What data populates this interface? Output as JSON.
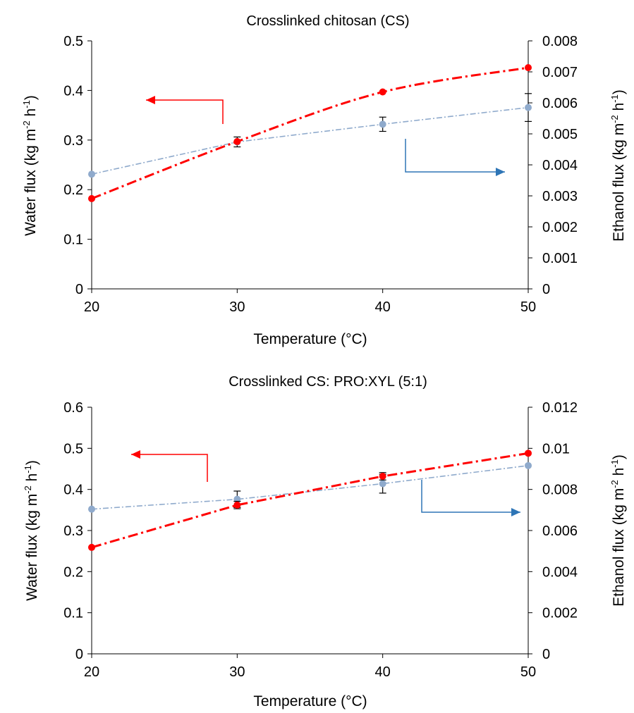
{
  "chart_data": [
    {
      "type": "line",
      "title": "Crosslinked chitosan (CS)",
      "xlabel": "Temperature (°C)",
      "ylabel": {
        "pre": "Water  flux (kg m",
        "sup1": "-2",
        "mid": " h",
        "sup2": "-1",
        "post": ")"
      },
      "y2label": {
        "pre": "Ethanol flux (kg m",
        "sup1": "-2",
        "mid": " h",
        "sup2": "-1",
        "post": ")"
      },
      "xlim": [
        20,
        50
      ],
      "ylim": [
        0,
        0.5
      ],
      "y2lim": [
        0,
        0.008
      ],
      "x_ticks": [
        "20",
        "30",
        "40",
        "50"
      ],
      "y_ticks": [
        "0",
        "0.1",
        "0.2",
        "0.3",
        "0.4",
        "0.5"
      ],
      "y2_ticks": [
        "0",
        "0.001",
        "0.002",
        "0.003",
        "0.004",
        "0.005",
        "0.006",
        "0.007",
        "0.008"
      ],
      "series": [
        {
          "axis": "y",
          "color": "#ff0000",
          "style": "dash-dot",
          "smooth": true,
          "x": [
            20,
            30,
            40,
            50
          ],
          "y": [
            0.182,
            0.297,
            0.397,
            0.446
          ],
          "err": [
            0,
            0,
            0,
            0
          ]
        },
        {
          "axis": "y2",
          "color": "#8faacc",
          "style": "dash-dot",
          "smooth": false,
          "x": [
            20,
            30,
            40,
            50
          ],
          "y": [
            0.0037,
            0.00474,
            0.00531,
            0.00585
          ],
          "err": [
            0,
            0.00016,
            0.00023,
            0.00045
          ]
        }
      ],
      "annotations": [
        {
          "type": "arrow-left",
          "color": "#ff0000",
          "target": "Water flux axis"
        },
        {
          "type": "arrow-right",
          "color": "#2e75b6",
          "target": "Ethanol flux axis"
        }
      ]
    },
    {
      "type": "line",
      "title": "Crosslinked CS: PRO:XYL (5:1)",
      "xlabel": "Temperature (°C)",
      "ylabel": {
        "pre": "Water flux  (kg m",
        "sup1": "-2",
        "mid": " h",
        "sup2": "-1",
        "post": ")"
      },
      "y2label": {
        "pre": "Ethanol flux (kg m",
        "sup1": "-2",
        "mid": " h",
        "sup2": "-1",
        "post": ")"
      },
      "xlim": [
        20,
        50
      ],
      "ylim": [
        0,
        0.6
      ],
      "y2lim": [
        0,
        0.012
      ],
      "x_ticks": [
        "20",
        "30",
        "40",
        "50"
      ],
      "y_ticks": [
        "0",
        "0.1",
        "0.2",
        "0.3",
        "0.4",
        "0.5",
        "0.6"
      ],
      "y2_ticks": [
        "0",
        "0.002",
        "0.004",
        "0.006",
        "0.008",
        "0.01",
        "0.012"
      ],
      "series": [
        {
          "axis": "y",
          "color": "#ff0000",
          "style": "dash-dot",
          "smooth": false,
          "x": [
            20,
            30,
            40,
            50
          ],
          "y": [
            0.259,
            0.362,
            0.432,
            0.488
          ],
          "err": [
            0,
            0.009,
            0.009,
            0
          ]
        },
        {
          "axis": "y2",
          "color": "#8faacc",
          "style": "dash-dot",
          "smooth": false,
          "x": [
            20,
            30,
            40,
            50
          ],
          "y": [
            0.00704,
            0.00752,
            0.00828,
            0.00916
          ],
          "err": [
            0,
            0.0004,
            0.00046,
            0
          ]
        }
      ],
      "annotations": [
        {
          "type": "arrow-left",
          "color": "#ff0000",
          "target": "Water flux axis"
        },
        {
          "type": "arrow-right",
          "color": "#2e75b6",
          "target": "Ethanol flux axis"
        }
      ]
    }
  ]
}
